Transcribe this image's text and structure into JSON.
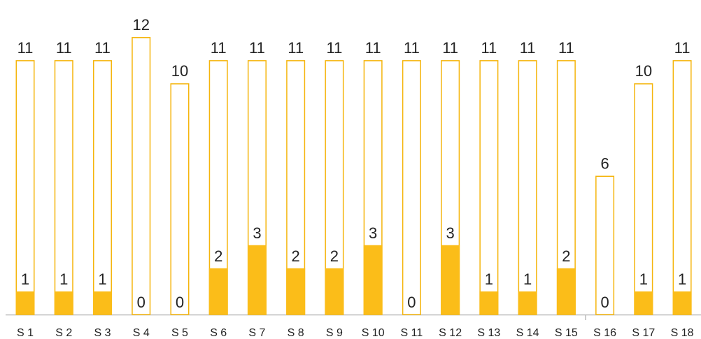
{
  "chart_data": {
    "type": "bar",
    "categories": [
      "S 1",
      "S 2",
      "S 3",
      "S 4",
      "S 5",
      "S 6",
      "S 7",
      "S 8",
      "S 9",
      "S 10",
      "S 11",
      "S 12",
      "S 13",
      "S 14",
      "S 15",
      "S 16",
      "S 17",
      "S 18"
    ],
    "series": [
      {
        "color": "#f5b50c",
        "outline": true,
        "values": [
          11,
          11,
          11,
          12,
          10,
          11,
          11,
          11,
          11,
          11,
          11,
          11,
          11,
          11,
          11,
          6,
          10,
          11
        ]
      },
      {
        "color": "#fbbd19",
        "outline": false,
        "values": [
          1,
          1,
          1,
          0,
          0,
          2,
          3,
          2,
          2,
          3,
          0,
          3,
          1,
          1,
          2,
          0,
          1,
          1
        ]
      }
    ],
    "ylim": [
      0,
      12
    ]
  }
}
